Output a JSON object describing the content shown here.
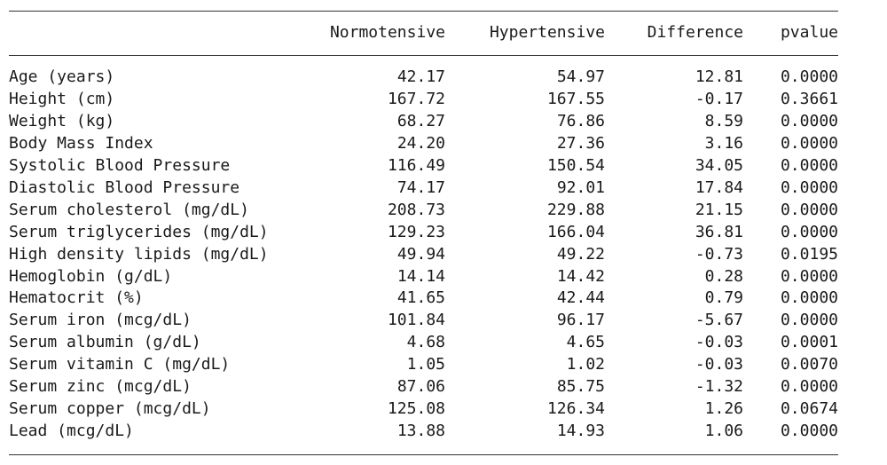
{
  "table": {
    "headers": [
      "Normotensive",
      "Hypertensive",
      "Difference",
      "pvalue"
    ],
    "rows": [
      {
        "label": "Age (years)",
        "values": [
          "42.17",
          "54.97",
          "12.81",
          "0.0000"
        ]
      },
      {
        "label": "Height (cm)",
        "values": [
          "167.72",
          "167.55",
          "-0.17",
          "0.3661"
        ]
      },
      {
        "label": "Weight (kg)",
        "values": [
          "68.27",
          "76.86",
          "8.59",
          "0.0000"
        ]
      },
      {
        "label": "Body Mass Index",
        "values": [
          "24.20",
          "27.36",
          "3.16",
          "0.0000"
        ]
      },
      {
        "label": "Systolic Blood Pressure",
        "values": [
          "116.49",
          "150.54",
          "34.05",
          "0.0000"
        ]
      },
      {
        "label": "Diastolic Blood Pressure",
        "values": [
          "74.17",
          "92.01",
          "17.84",
          "0.0000"
        ]
      },
      {
        "label": "Serum cholesterol (mg/dL)",
        "values": [
          "208.73",
          "229.88",
          "21.15",
          "0.0000"
        ]
      },
      {
        "label": "Serum triglycerides (mg/dL)",
        "values": [
          "129.23",
          "166.04",
          "36.81",
          "0.0000"
        ]
      },
      {
        "label": "High density lipids (mg/dL)",
        "values": [
          "49.94",
          "49.22",
          "-0.73",
          "0.0195"
        ]
      },
      {
        "label": "Hemoglobin (g/dL)",
        "values": [
          "14.14",
          "14.42",
          "0.28",
          "0.0000"
        ]
      },
      {
        "label": "Hematocrit (%)",
        "values": [
          "41.65",
          "42.44",
          "0.79",
          "0.0000"
        ]
      },
      {
        "label": "Serum iron (mcg/dL)",
        "values": [
          "101.84",
          "96.17",
          "-5.67",
          "0.0000"
        ]
      },
      {
        "label": "Serum albumin (g/dL)",
        "values": [
          "4.68",
          "4.65",
          "-0.03",
          "0.0001"
        ]
      },
      {
        "label": "Serum vitamin C (mg/dL)",
        "values": [
          "1.05",
          "1.02",
          "-0.03",
          "0.0070"
        ]
      },
      {
        "label": "Serum zinc (mcg/dL)",
        "values": [
          "87.06",
          "85.75",
          "-1.32",
          "0.0000"
        ]
      },
      {
        "label": "Serum copper (mcg/dL)",
        "values": [
          "125.08",
          "126.34",
          "1.26",
          "0.0674"
        ]
      },
      {
        "label": "Lead (mcg/dL)",
        "values": [
          "13.88",
          "14.93",
          "1.06",
          "0.0000"
        ]
      }
    ]
  }
}
